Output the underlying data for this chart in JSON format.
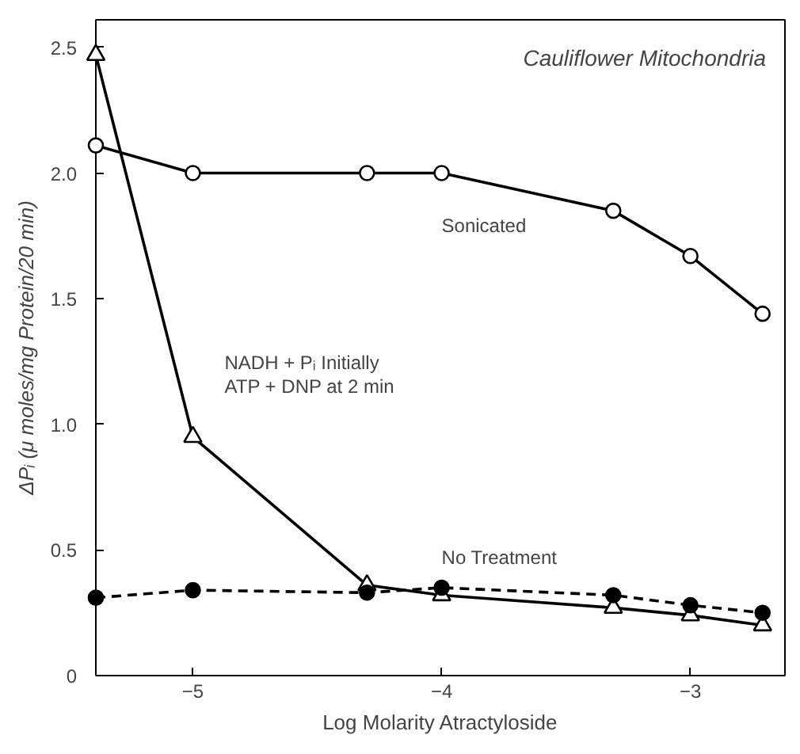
{
  "chart_data": {
    "type": "line",
    "title": "Cauliflower Mitochondria",
    "xlabel": "Log Molarity Atractyloside",
    "ylabel": "ΔPᵢ (μ moles/mg Protein/20 min)",
    "x": [
      -5.39,
      -5.0,
      -4.3,
      -4.0,
      -3.31,
      -3.0,
      -2.71
    ],
    "series": [
      {
        "name": "Sonicated",
        "color": "#000000",
        "marker": "circle",
        "line_style": "solid",
        "values": [
          2.11,
          2.0,
          2.0,
          2.0,
          1.85,
          1.67,
          1.44
        ]
      },
      {
        "name": "NADH + Pᵢ Initially\nATP + DNP at 2 min",
        "color": "#000000",
        "marker": "triangle",
        "line_style": "solid",
        "values": [
          2.47,
          0.95,
          0.36,
          0.32,
          0.27,
          0.24,
          0.2
        ]
      },
      {
        "name": "No Treatment",
        "color": "#000000",
        "marker": "circle",
        "line_style": "dashed",
        "values": [
          0.31,
          0.34,
          0.33,
          0.35,
          0.32,
          0.28,
          0.25
        ]
      }
    ],
    "xlim": [
      -5.39,
      -2.62
    ],
    "ylim": [
      0,
      2.61
    ],
    "xticks": [
      -5,
      -4,
      -3
    ],
    "yticks": [
      {
        "value": 0,
        "label": "0"
      },
      {
        "value": 0.5,
        "label": "0.5"
      },
      {
        "value": 1.0,
        "label": "1.0"
      },
      {
        "value": 1.5,
        "label": "1.5"
      },
      {
        "value": 2.0,
        "label": "2.0"
      },
      {
        "value": 2.5,
        "label": "2.5"
      }
    ],
    "grid": false
  }
}
